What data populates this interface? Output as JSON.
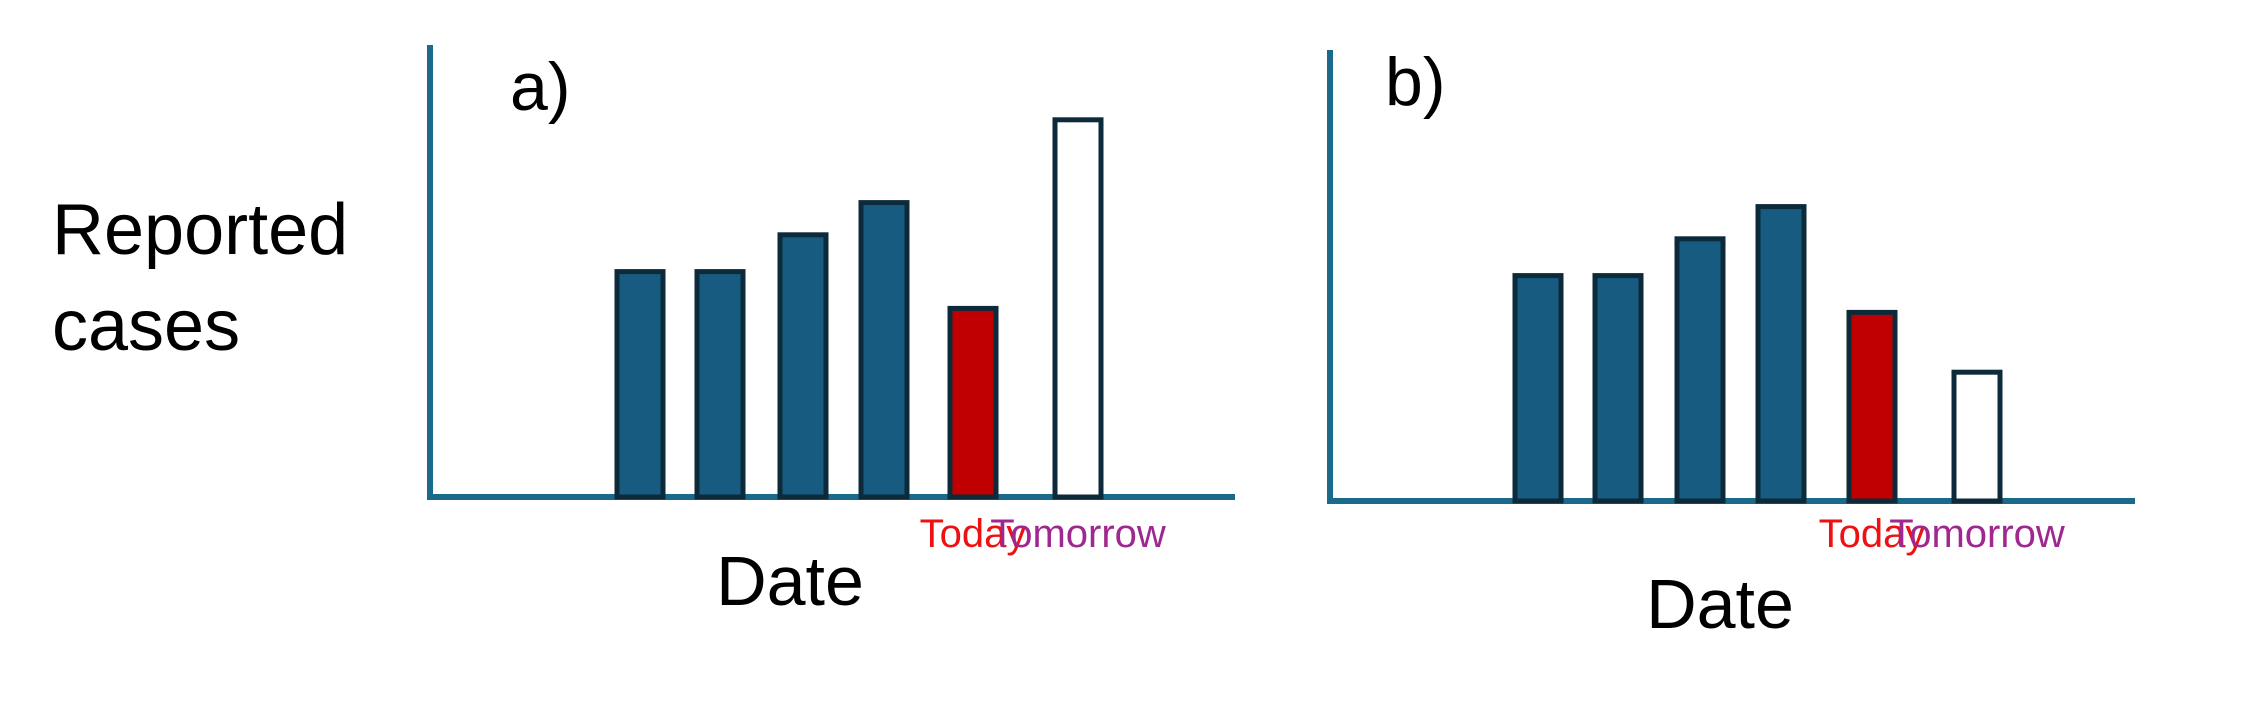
{
  "figure": {
    "ylabel": "Reported\ncases"
  },
  "colors": {
    "axis": "#1b6a8c",
    "past_bar": "#175c80",
    "bar_outline": "#0d2a3a",
    "today_bar": "#c00000",
    "tomorrow_bar": "#ffffff",
    "today_text": "#ee1111",
    "tomorrow_text": "#a0278f"
  },
  "chart_data": [
    {
      "type": "bar",
      "panel": "a)",
      "xlabel": "Date",
      "ylabel": "Reported cases",
      "categories": [
        "",
        "",
        "",
        "",
        "Today",
        "Tomorrow"
      ],
      "values": [
        4.9,
        4.9,
        5.7,
        6.4,
        4.1,
        8.2
      ],
      "bar_kinds": [
        "past",
        "past",
        "past",
        "past",
        "today",
        "tomorrow"
      ],
      "ylim": [
        0,
        10
      ]
    },
    {
      "type": "bar",
      "panel": "b)",
      "xlabel": "Date",
      "ylabel": "Reported cases",
      "categories": [
        "",
        "",
        "",
        "",
        "Today",
        "Tomorrow"
      ],
      "values": [
        4.9,
        4.9,
        5.7,
        6.4,
        4.1,
        2.8
      ],
      "bar_kinds": [
        "past",
        "past",
        "past",
        "past",
        "today",
        "tomorrow"
      ],
      "ylim": [
        0,
        10
      ]
    }
  ]
}
